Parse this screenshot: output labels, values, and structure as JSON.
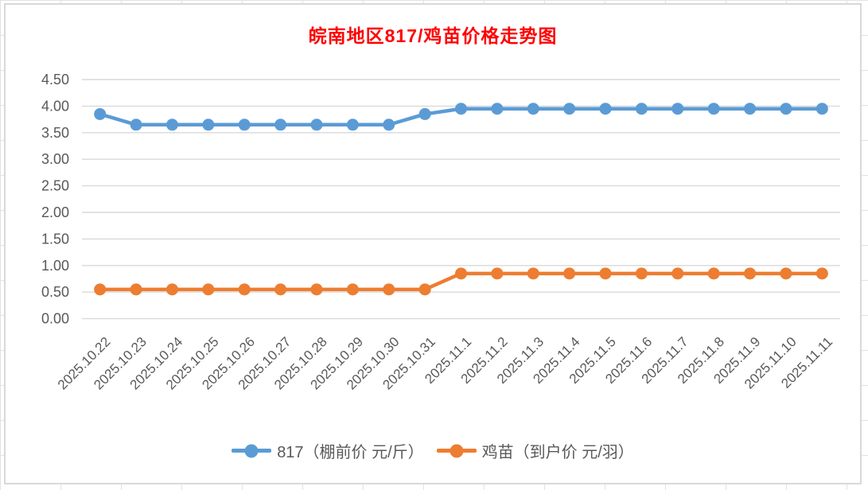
{
  "chart_data": {
    "type": "line",
    "title": "皖南地区817/鸡苗价格走势图",
    "title_color": "#FF0000",
    "categories": [
      "2025.10.22",
      "2025.10.23",
      "2025.10.24",
      "2025.10.25",
      "2025.10.26",
      "2025.10.27",
      "2025.10.28",
      "2025.10.29",
      "2025.10.30",
      "2025.10.31",
      "2025.11.1",
      "2025.11.2",
      "2025.11.3",
      "2025.11.4",
      "2025.11.5",
      "2025.11.6",
      "2025.11.7",
      "2025.11.8",
      "2025.11.9",
      "2025.11.10",
      "2025.11.11"
    ],
    "series": [
      {
        "name": "817（棚前价 元/斤）",
        "color": "#5B9BD5",
        "values": [
          3.85,
          3.65,
          3.65,
          3.65,
          3.65,
          3.65,
          3.65,
          3.65,
          3.65,
          3.85,
          3.95,
          3.95,
          3.95,
          3.95,
          3.95,
          3.95,
          3.95,
          3.95,
          3.95,
          3.95,
          3.95
        ]
      },
      {
        "name": "鸡苗（到户价 元/羽）",
        "color": "#ED7D31",
        "values": [
          0.55,
          0.55,
          0.55,
          0.55,
          0.55,
          0.55,
          0.55,
          0.55,
          0.55,
          0.55,
          0.85,
          0.85,
          0.85,
          0.85,
          0.85,
          0.85,
          0.85,
          0.85,
          0.85,
          0.85,
          0.85
        ]
      }
    ],
    "ylim": [
      0,
      4.5
    ],
    "ytick_step": 0.5,
    "ytick_labels": [
      "0.00",
      "0.50",
      "1.00",
      "1.50",
      "2.00",
      "2.50",
      "3.00",
      "3.50",
      "4.00",
      "4.50"
    ],
    "xlabel": "",
    "ylabel": "",
    "grid": true,
    "grid_color": "#D9D9D9",
    "axis_text_color": "#595959",
    "legend_position": "bottom"
  }
}
